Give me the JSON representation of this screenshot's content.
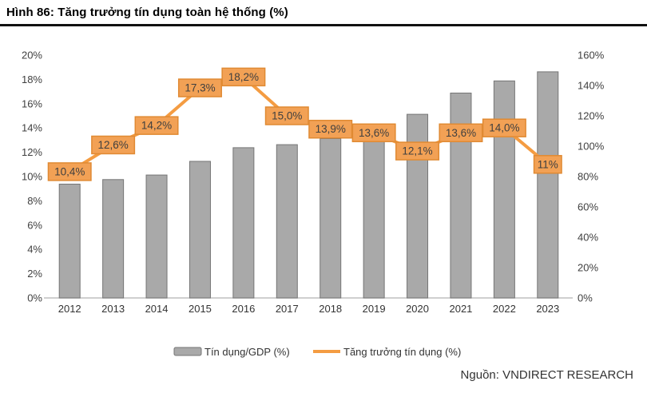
{
  "title": "Hình 86: Tăng trưởng tín dụng toàn hệ thống (%)",
  "source": "Nguồn: VNDIRECT RESEARCH",
  "colors": {
    "bar_fill": "#A9A9A9",
    "bar_stroke": "#757575",
    "line": "#F49C42",
    "label_fill": "#F2A155",
    "label_stroke": "#E08A33",
    "label_text": "#3F3F3F",
    "axis_text": "#404040",
    "axis_line": "#BFBFBF",
    "legend_text": "#333333",
    "title_text": "#000000",
    "source_text": "#333333"
  },
  "chart_data": {
    "type": "combo-bar-line",
    "title": "Hình 86: Tăng trưởng tín dụng toàn hệ thống (%)",
    "categories": [
      "2012",
      "2013",
      "2014",
      "2015",
      "2016",
      "2017",
      "2018",
      "2019",
      "2020",
      "2021",
      "2022",
      "2023"
    ],
    "series": [
      {
        "name": "Tín dụng/GDP (%)",
        "type": "bar",
        "axis": "right",
        "values": [
          75,
          78,
          81,
          90,
          99,
          101,
          105,
          103,
          121,
          135,
          143,
          149
        ]
      },
      {
        "name": "Tăng trưởng tín dụng (%)",
        "type": "line",
        "axis": "left",
        "values": [
          10.4,
          12.6,
          14.2,
          17.3,
          18.2,
          15.0,
          13.9,
          13.6,
          12.1,
          13.6,
          14.0,
          11.0
        ],
        "point_labels": [
          "10,4%",
          "12,6%",
          "14,2%",
          "17,3%",
          "18,2%",
          "15,0%",
          "13,9%",
          "13,6%",
          "12,1%",
          "13,6%",
          "14,0%",
          "11%"
        ]
      }
    ],
    "left_axis": {
      "min": 0,
      "max": 20,
      "step": 2,
      "suffix": "%"
    },
    "right_axis": {
      "min": 0,
      "max": 160,
      "step": 20,
      "suffix": "%"
    },
    "legend_position": "bottom-center",
    "grid": false
  }
}
